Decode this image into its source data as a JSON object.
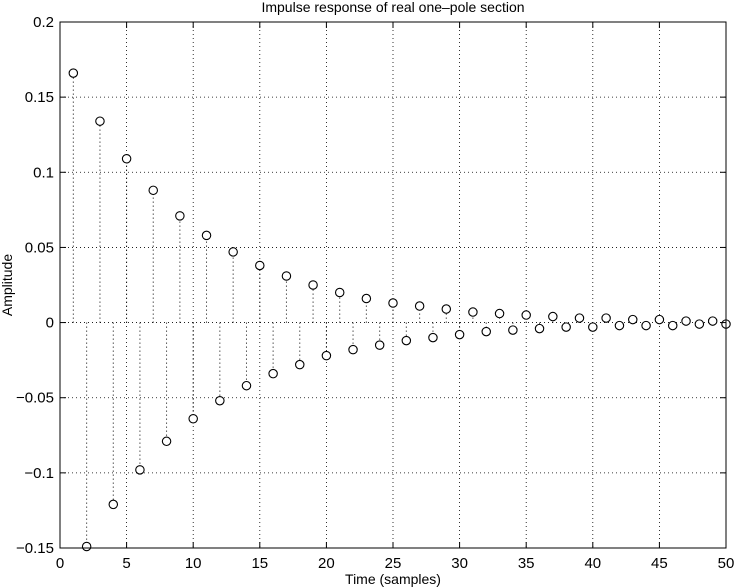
{
  "chart_data": {
    "type": "stem",
    "title": "Impulse response of real one–pole section",
    "xlabel": "Time (samples)",
    "ylabel": "Amplitude",
    "xlim": [
      0,
      50
    ],
    "ylim": [
      -0.15,
      0.2
    ],
    "grid": true,
    "x_ticks": [
      0,
      5,
      10,
      15,
      20,
      25,
      30,
      35,
      40,
      45,
      50
    ],
    "y_ticks": [
      -0.15,
      -0.1,
      -0.05,
      0,
      0.05,
      0.1,
      0.15,
      0.2
    ],
    "x_tick_labels": [
      "0",
      "5",
      "10",
      "15",
      "20",
      "25",
      "30",
      "35",
      "40",
      "45",
      "50"
    ],
    "y_tick_labels": [
      "−0.15",
      "−0.1",
      "−0.05",
      "0",
      "0.05",
      "0.1",
      "0.15",
      "0.2"
    ],
    "x": [
      1,
      2,
      3,
      4,
      5,
      6,
      7,
      8,
      9,
      10,
      11,
      12,
      13,
      14,
      15,
      16,
      17,
      18,
      19,
      20,
      21,
      22,
      23,
      24,
      25,
      26,
      27,
      28,
      29,
      30,
      31,
      32,
      33,
      34,
      35,
      36,
      37,
      38,
      39,
      40,
      41,
      42,
      43,
      44,
      45,
      46,
      47,
      48,
      49,
      50
    ],
    "values": [
      0.166,
      -0.149,
      0.134,
      -0.121,
      0.109,
      -0.098,
      0.088,
      -0.079,
      0.071,
      -0.064,
      0.058,
      -0.052,
      0.047,
      -0.042,
      0.038,
      -0.034,
      0.031,
      -0.028,
      0.025,
      -0.022,
      0.02,
      -0.018,
      0.016,
      -0.015,
      0.013,
      -0.012,
      0.011,
      -0.01,
      0.009,
      -0.008,
      0.007,
      -0.006,
      0.006,
      -0.005,
      0.005,
      -0.004,
      0.004,
      -0.003,
      0.003,
      -0.003,
      0.003,
      -0.002,
      0.002,
      -0.002,
      0.002,
      -0.002,
      0.001,
      -0.001,
      0.001,
      -0.001
    ]
  }
}
